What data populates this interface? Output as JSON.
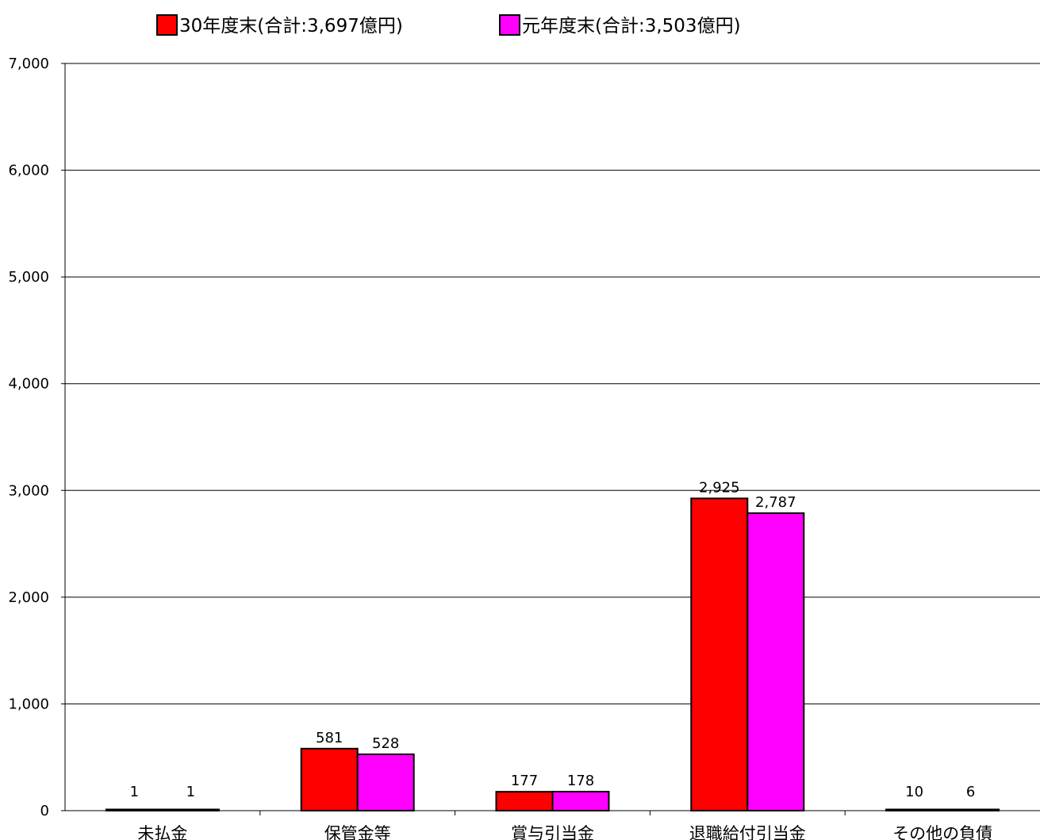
{
  "chart_data": {
    "type": "bar",
    "categories": [
      "未払金",
      "保管金等",
      "賞与引当金",
      "退職給付引当金",
      "その他の負債"
    ],
    "series": [
      {
        "name": "30年度末(合計:3,697億円)",
        "color": "#ff0000",
        "values": [
          1,
          581,
          177,
          2925,
          10
        ],
        "labels": [
          "1",
          "581",
          "177",
          "2,925",
          "10"
        ]
      },
      {
        "name": "元年度末(合計:3,503億円)",
        "color": "#ff00ff",
        "values": [
          1,
          528,
          178,
          2787,
          6
        ],
        "labels": [
          "1",
          "528",
          "178",
          "2,787",
          "6"
        ]
      }
    ],
    "ylim": [
      0,
      7000
    ],
    "yticks": [
      0,
      1000,
      2000,
      3000,
      4000,
      5000,
      6000,
      7000
    ],
    "ytick_labels": [
      "0",
      "1,000",
      "2,000",
      "3,000",
      "4,000",
      "5,000",
      "6,000",
      "7,000"
    ],
    "grid": true,
    "legend_position": "top-center",
    "title": "",
    "xlabel": "",
    "ylabel": ""
  }
}
